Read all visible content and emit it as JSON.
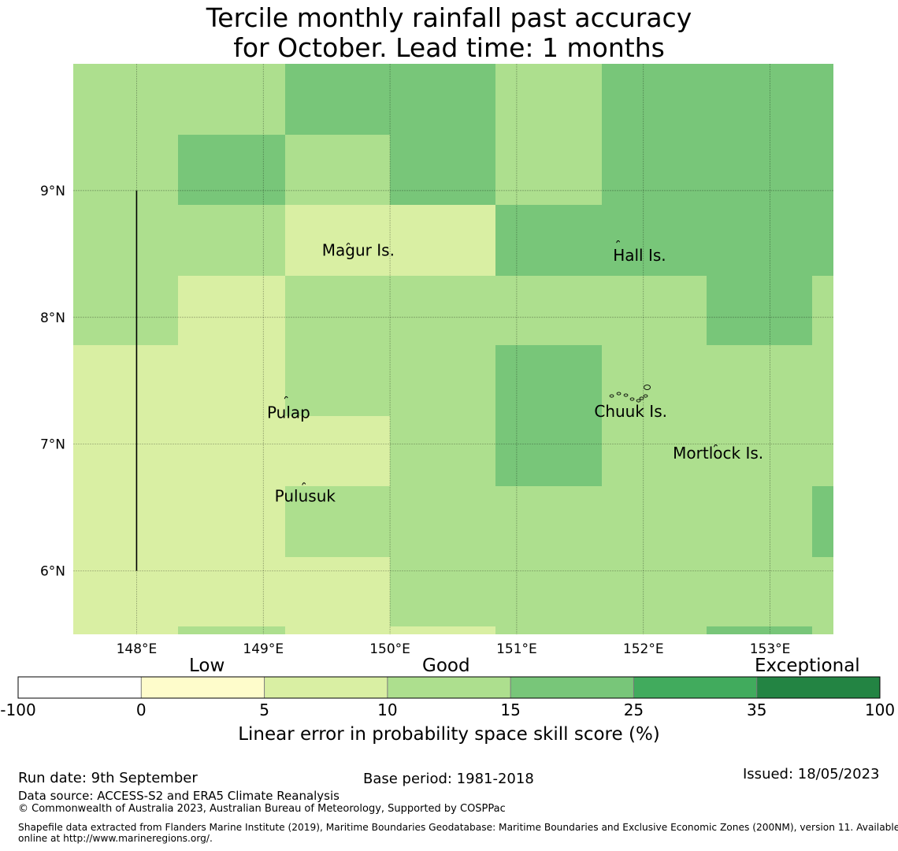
{
  "title": {
    "line1": "Tercile monthly rainfall past accuracy",
    "line2": "for October. Lead time: 1 months"
  },
  "map": {
    "lon_range": [
      147.5,
      153.5
    ],
    "lat_range": [
      5.5,
      10.0
    ],
    "lon_ticks": [
      {
        "value": 148,
        "label": "148°E"
      },
      {
        "value": 149,
        "label": "149°E"
      },
      {
        "value": 150,
        "label": "150°E"
      },
      {
        "value": 151,
        "label": "151°E"
      },
      {
        "value": 152,
        "label": "152°E"
      },
      {
        "value": 153,
        "label": "153°E"
      }
    ],
    "lat_ticks": [
      {
        "value": 9,
        "label": "9°N"
      },
      {
        "value": 8,
        "label": "8°N"
      },
      {
        "value": 7,
        "label": "7°N"
      },
      {
        "value": 6,
        "label": "6°N"
      }
    ],
    "cell_lon_edges": [
      147.5,
      148.33,
      149.17,
      150.0,
      150.83,
      151.67,
      152.5,
      153.33,
      153.5
    ],
    "cell_lat_edges": [
      10.0,
      9.44,
      8.89,
      8.33,
      7.78,
      7.22,
      6.67,
      6.11,
      5.56,
      5.5
    ],
    "category_colors": [
      "#ffffff",
      "#fefccb",
      "#d9efa3",
      "#addf8e",
      "#78c679",
      "#41ab5d",
      "#238443"
    ],
    "skill_category_grid": [
      [
        3,
        3,
        4,
        4,
        3,
        4,
        4,
        4
      ],
      [
        3,
        4,
        3,
        4,
        3,
        4,
        4,
        4
      ],
      [
        3,
        3,
        2,
        2,
        4,
        4,
        4,
        4
      ],
      [
        3,
        2,
        3,
        3,
        3,
        3,
        4,
        3
      ],
      [
        2,
        2,
        3,
        3,
        4,
        3,
        3,
        3
      ],
      [
        2,
        2,
        2,
        3,
        4,
        3,
        3,
        3
      ],
      [
        2,
        2,
        3,
        3,
        3,
        3,
        3,
        4
      ],
      [
        2,
        2,
        2,
        3,
        3,
        3,
        3,
        3
      ],
      [
        2,
        3,
        2,
        2,
        3,
        3,
        4,
        3
      ]
    ],
    "boundary_line": {
      "lon": 148.0,
      "lat_from": 6.0,
      "lat_to": 9.0
    },
    "labels": [
      {
        "name": "Magur Is.",
        "lon": 149.75,
        "lat": 8.53
      },
      {
        "name": "Hall Is.",
        "lon": 151.97,
        "lat": 8.49
      },
      {
        "name": "Pulap",
        "lon": 149.2,
        "lat": 7.25
      },
      {
        "name": "Chuuk Is.",
        "lon": 151.9,
        "lat": 7.26
      },
      {
        "name": "Mortlock Is.",
        "lon": 152.59,
        "lat": 6.93
      },
      {
        "name": "Pulusuk",
        "lon": 149.33,
        "lat": 6.59
      }
    ],
    "islands": [
      {
        "name": "Magur",
        "lon": 149.67,
        "lat": 8.58
      },
      {
        "name": "Pulap",
        "lon": 149.18,
        "lat": 7.37
      },
      {
        "name": "Pulusuk",
        "lon": 149.32,
        "lat": 6.69
      },
      {
        "name": "Chuuk",
        "lon": 151.75,
        "lat": 7.38
      },
      {
        "name": "Hall",
        "lon": 151.8,
        "lat": 8.6
      },
      {
        "name": "Mortlock",
        "lon": 152.57,
        "lat": 6.99
      }
    ]
  },
  "colorbar": {
    "category_titles": {
      "low": "Low",
      "good": "Good",
      "exceptional": "Exceptional"
    },
    "boundaries": [
      "-100",
      "0",
      "5",
      "10",
      "15",
      "25",
      "35",
      "100"
    ],
    "colors": [
      "#ffffff",
      "#fefccb",
      "#d9efa3",
      "#addf8e",
      "#78c679",
      "#41ab5d",
      "#238443"
    ],
    "label": "Linear error in probability space skill score (%)"
  },
  "footer": {
    "run_date": "Run date: 9th September",
    "base_period": "Base period: 1981-2018",
    "issued": "Issued: 18/05/2023",
    "data_source": "Data source: ACCESS-S2 and ERA5 Climate Reanalysis",
    "copyright": "© Commonwealth of Australia 2023, Australian Bureau of Meteorology, Supported by COSPPac",
    "shapefile_line1": "Shapefile data extracted from Flanders Marine Institute (2019), Maritime Boundaries Geodatabase: Maritime Boundaries and Exclusive Economic Zones (200NM), version 11. Available",
    "shapefile_line2": "online at http://www.marineregions.org/."
  }
}
